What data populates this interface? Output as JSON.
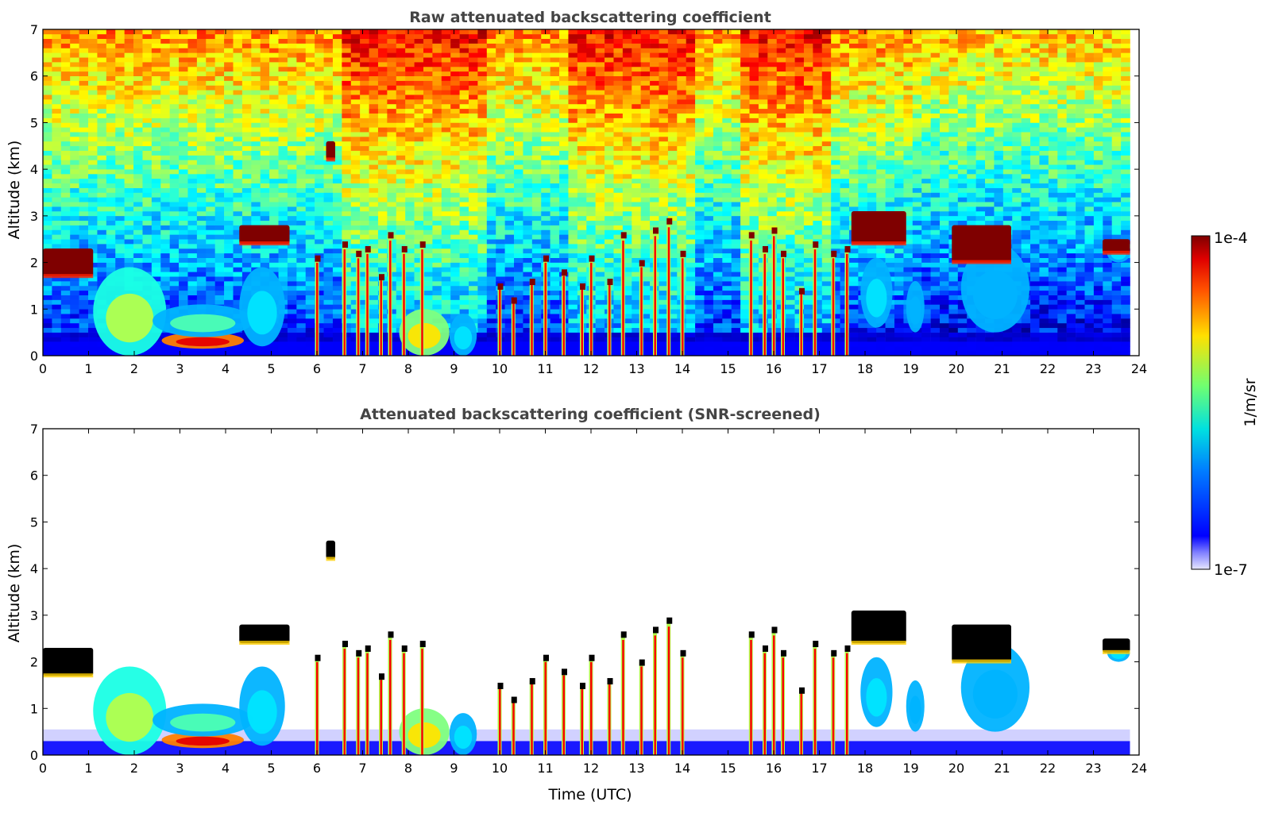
{
  "chart_data": [
    {
      "type": "heatmap",
      "title": "Raw attenuated backscattering coefficient",
      "xlabel": "",
      "ylabel": "Altitude (km)",
      "xlim": [
        0,
        24
      ],
      "ylim": [
        0,
        7
      ],
      "xticks": [
        "0",
        "1",
        "2",
        "3",
        "4",
        "5",
        "6",
        "7",
        "8",
        "9",
        "10",
        "11",
        "12",
        "13",
        "14",
        "15",
        "16",
        "17",
        "18",
        "19",
        "20",
        "21",
        "22",
        "23",
        "24"
      ],
      "yticks": [
        "0",
        "1",
        "2",
        "3",
        "4",
        "5",
        "6",
        "7"
      ],
      "data_end_hour": 23.8,
      "noise": true,
      "features": [
        {
          "kind": "boundary_layer",
          "x": [
            0,
            23.8
          ],
          "top_km": 0.3
        },
        {
          "kind": "plume",
          "x": [
            1.1,
            2.7
          ],
          "y": [
            0,
            1.9
          ],
          "intensity": 0.55
        },
        {
          "kind": "plume",
          "x": [
            2.6,
            4.4
          ],
          "y": [
            0.15,
            0.5
          ],
          "intensity": 0.9
        },
        {
          "kind": "plume",
          "x": [
            2.4,
            4.6
          ],
          "y": [
            0.4,
            1.1
          ],
          "intensity": 0.45
        },
        {
          "kind": "plume",
          "x": [
            4.3,
            5.3
          ],
          "y": [
            0.2,
            1.9
          ],
          "intensity": 0.35
        },
        {
          "kind": "plume",
          "x": [
            7.8,
            8.9
          ],
          "y": [
            0,
            1.0
          ],
          "intensity": 0.65
        },
        {
          "kind": "plume",
          "x": [
            8.9,
            9.5
          ],
          "y": [
            0,
            0.9
          ],
          "intensity": 0.35
        },
        {
          "kind": "plume",
          "x": [
            17.9,
            18.6
          ],
          "y": [
            0.6,
            2.1
          ],
          "intensity": 0.35
        },
        {
          "kind": "plume",
          "x": [
            18.9,
            19.3
          ],
          "y": [
            0.5,
            1.6
          ],
          "intensity": 0.3
        },
        {
          "kind": "plume",
          "x": [
            20.1,
            21.6
          ],
          "y": [
            0.5,
            2.4
          ],
          "intensity": 0.3
        },
        {
          "kind": "plume",
          "x": [
            23.3,
            23.8
          ],
          "y": [
            2.0,
            2.4
          ],
          "intensity": 0.35
        },
        {
          "kind": "cloud_layer",
          "x": [
            0,
            1.1
          ],
          "y": [
            1.7,
            2.3
          ]
        },
        {
          "kind": "cloud_layer",
          "x": [
            4.3,
            5.4
          ],
          "y": [
            2.4,
            2.8
          ]
        },
        {
          "kind": "cloud_layer",
          "x": [
            6.2,
            6.4
          ],
          "y": [
            4.2,
            4.6
          ]
        },
        {
          "kind": "cloud_layer",
          "x": [
            17.7,
            18.9
          ],
          "y": [
            2.4,
            3.1
          ]
        },
        {
          "kind": "cloud_layer",
          "x": [
            19.9,
            21.2
          ],
          "y": [
            2.0,
            2.8
          ]
        },
        {
          "kind": "cloud_layer",
          "x": [
            23.2,
            23.8
          ],
          "y": [
            2.2,
            2.5
          ]
        },
        {
          "kind": "streak",
          "x": 6.0,
          "top": 2.1
        },
        {
          "kind": "streak",
          "x": 6.6,
          "top": 2.4
        },
        {
          "kind": "streak",
          "x": 6.9,
          "top": 2.2
        },
        {
          "kind": "streak",
          "x": 7.1,
          "top": 2.3
        },
        {
          "kind": "streak",
          "x": 7.4,
          "top": 1.7
        },
        {
          "kind": "streak",
          "x": 7.6,
          "top": 2.6
        },
        {
          "kind": "streak",
          "x": 7.9,
          "top": 2.3
        },
        {
          "kind": "streak",
          "x": 8.3,
          "top": 2.4
        },
        {
          "kind": "streak",
          "x": 10.0,
          "top": 1.5
        },
        {
          "kind": "streak",
          "x": 10.3,
          "top": 1.2
        },
        {
          "kind": "streak",
          "x": 10.7,
          "top": 1.6
        },
        {
          "kind": "streak",
          "x": 11.0,
          "top": 2.1
        },
        {
          "kind": "streak",
          "x": 11.4,
          "top": 1.8
        },
        {
          "kind": "streak",
          "x": 11.8,
          "top": 1.5
        },
        {
          "kind": "streak",
          "x": 12.0,
          "top": 2.1
        },
        {
          "kind": "streak",
          "x": 12.4,
          "top": 1.6
        },
        {
          "kind": "streak",
          "x": 12.7,
          "top": 2.6
        },
        {
          "kind": "streak",
          "x": 13.1,
          "top": 2.0
        },
        {
          "kind": "streak",
          "x": 13.4,
          "top": 2.7
        },
        {
          "kind": "streak",
          "x": 13.7,
          "top": 2.9
        },
        {
          "kind": "streak",
          "x": 14.0,
          "top": 2.2
        },
        {
          "kind": "streak",
          "x": 15.5,
          "top": 2.6
        },
        {
          "kind": "streak",
          "x": 15.8,
          "top": 2.3
        },
        {
          "kind": "streak",
          "x": 16.0,
          "top": 2.7
        },
        {
          "kind": "streak",
          "x": 16.2,
          "top": 2.2
        },
        {
          "kind": "streak",
          "x": 16.6,
          "top": 1.4
        },
        {
          "kind": "streak",
          "x": 16.9,
          "top": 2.4
        },
        {
          "kind": "streak",
          "x": 17.3,
          "top": 2.2
        },
        {
          "kind": "streak",
          "x": 17.6,
          "top": 2.3
        }
      ]
    },
    {
      "type": "heatmap",
      "title": "Attenuated backscattering coefficient (SNR-screened)",
      "xlabel": "Time (UTC)",
      "ylabel": "Altitude (km)",
      "xlim": [
        0,
        24
      ],
      "ylim": [
        0,
        7
      ],
      "xticks": [
        "0",
        "1",
        "2",
        "3",
        "4",
        "5",
        "6",
        "7",
        "8",
        "9",
        "10",
        "11",
        "12",
        "13",
        "14",
        "15",
        "16",
        "17",
        "18",
        "19",
        "20",
        "21",
        "22",
        "23",
        "24"
      ],
      "yticks": [
        "0",
        "1",
        "2",
        "3",
        "4",
        "5",
        "6",
        "7"
      ],
      "data_end_hour": 23.8,
      "noise": false,
      "same_features_as_panel": 0
    }
  ],
  "colorbar": {
    "label": "1/m/sr",
    "max_label": "1e-4",
    "min_label": "1e-7",
    "scale": "log",
    "colormap": "jet"
  },
  "colors": {
    "cloud_dark": "#7f0000",
    "cloud_black": "#000000",
    "noise_high": "#ff3000",
    "background_low": "#0000ff",
    "title_color": "#444444"
  }
}
